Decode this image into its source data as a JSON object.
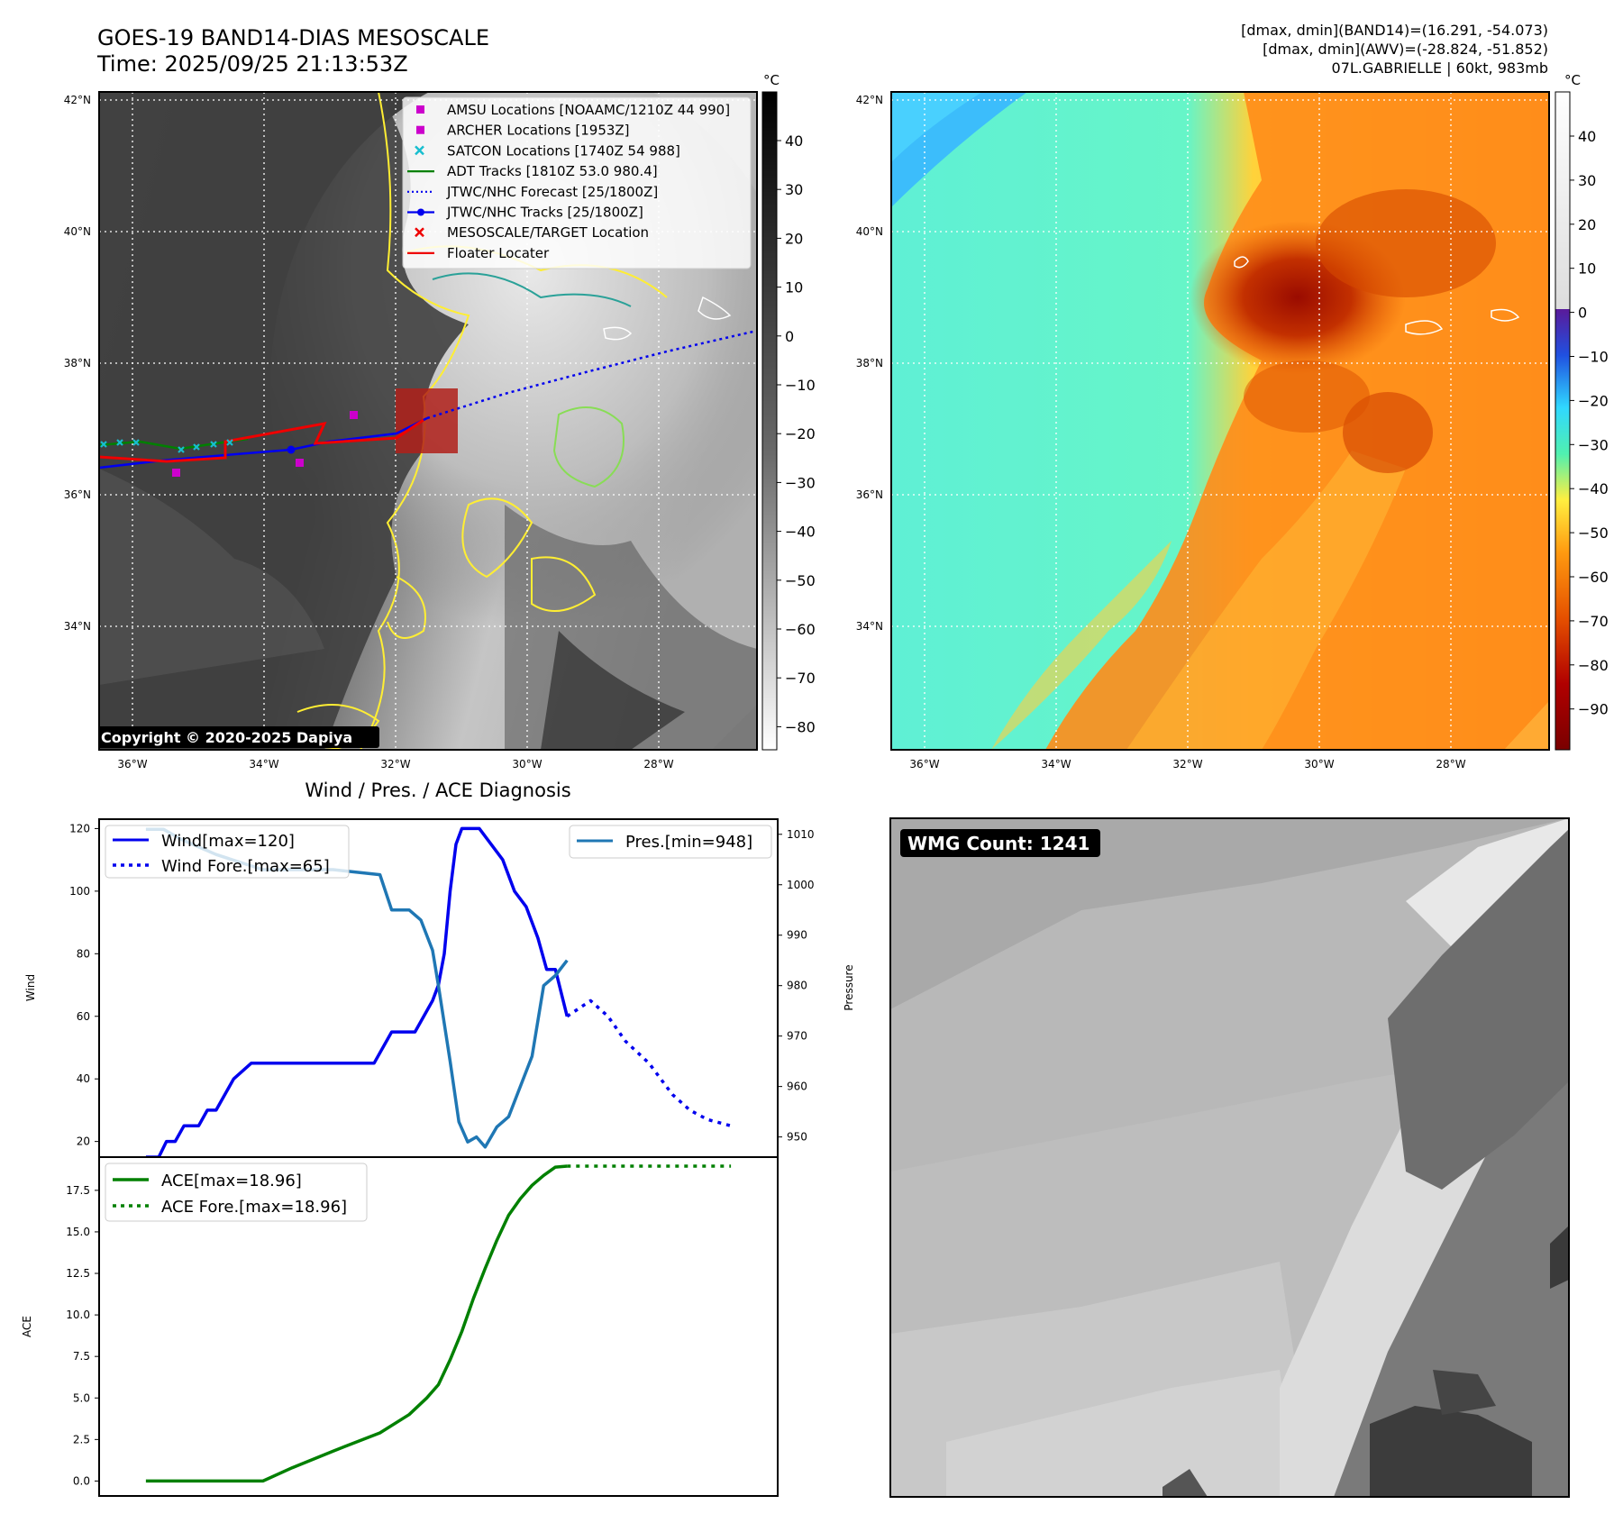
{
  "header": {
    "title_line1": "GOES-19 BAND14-DIAS MESOSCALE",
    "title_line2": "Time: 2025/09/25 21:13:53Z",
    "info_line1": "[dmax, dmin](BAND14)=(16.291, -54.073)",
    "info_line2": "[dmax, dmin](AWV)=(-28.824, -51.852)",
    "info_line3": "07L.GABRIELLE | 60kt, 983mb"
  },
  "colors": {
    "wind": "#0000ee",
    "pressure": "#1f77b4",
    "ace": "#008000",
    "forecast_track": "#0000ee",
    "floater": "#ee0000",
    "satcon": "#17becf",
    "amsu": "#cc00cc"
  },
  "map_axes": {
    "lat_ticks": [
      "42°N",
      "40°N",
      "38°N",
      "36°N",
      "34°N"
    ],
    "lon_ticks": [
      "36°W",
      "34°W",
      "32°W",
      "30°W",
      "28°W"
    ]
  },
  "left_colorbar": {
    "unit": "°C",
    "ticks": [
      "40",
      "30",
      "20",
      "10",
      "0",
      "−10",
      "−20",
      "−30",
      "−40",
      "−50",
      "−60",
      "−70",
      "−80"
    ]
  },
  "right_colorbar": {
    "unit": "°C",
    "ticks": [
      "40",
      "30",
      "20",
      "10",
      "0",
      "−10",
      "−20",
      "−30",
      "−40",
      "−50",
      "−60",
      "−70",
      "−80",
      "−90"
    ]
  },
  "map_legend": [
    {
      "label": "AMSU Locations [NOAAMC/1210Z 44 990]",
      "marker": "square",
      "color": "#cc00cc"
    },
    {
      "label": "ARCHER Locations [1953Z]",
      "marker": "square",
      "color": "#cc00cc"
    },
    {
      "label": "SATCON Locations [1740Z 54 988]",
      "marker": "x",
      "color": "#17becf"
    },
    {
      "label": "ADT Tracks [1810Z 53.0 980.4]",
      "marker": "line",
      "color": "#008000"
    },
    {
      "label": "JTWC/NHC Forecast [25/1800Z]",
      "marker": "dotted",
      "color": "#0000ee"
    },
    {
      "label": "JTWC/NHC Tracks [25/1800Z]",
      "marker": "line-dot",
      "color": "#0000ee"
    },
    {
      "label": "MESOSCALE/TARGET Location",
      "marker": "x",
      "color": "#ee0000"
    },
    {
      "label": "Floater Locater",
      "marker": "line",
      "color": "#ee0000"
    }
  ],
  "copyright": "Copyright © 2020-2025 Dapiya",
  "wmg_count": "WMG Count: 1241",
  "chart_data": [
    {
      "type": "line",
      "title": "Wind / Pres. / ACE Diagnosis",
      "ylabel": "Wind",
      "ylabel_right": "Pressure",
      "ylim": [
        15,
        123
      ],
      "ylim_right": [
        946,
        1013
      ],
      "xlim": [
        -0.08,
        1.08
      ],
      "yticks": [
        20,
        40,
        60,
        80,
        100,
        120
      ],
      "yticks_right": [
        950,
        960,
        970,
        980,
        990,
        1000,
        1010
      ],
      "legend_left": [
        "Wind[max=120]",
        "Wind Fore.[max=65]"
      ],
      "legend_right": [
        "Pres.[min=948]"
      ],
      "series": [
        {
          "name": "Wind",
          "style": "solid",
          "x": [
            0,
            0.022,
            0.035,
            0.05,
            0.065,
            0.09,
            0.105,
            0.12,
            0.15,
            0.18,
            0.22,
            0.38,
            0.39,
            0.42,
            0.46,
            0.49,
            0.5,
            0.51,
            0.52,
            0.53,
            0.54,
            0.555,
            0.57,
            0.61,
            0.63,
            0.65,
            0.67,
            0.685,
            0.7,
            0.72
          ],
          "values": [
            15,
            15,
            20,
            20,
            25,
            25,
            30,
            30,
            40,
            45,
            45,
            45,
            45,
            55,
            55,
            65,
            70,
            80,
            100,
            115,
            120,
            120,
            120,
            110,
            100,
            95,
            85,
            75,
            75,
            60
          ]
        },
        {
          "name": "Wind Fore.",
          "style": "dotted",
          "x": [
            0.72,
            0.76,
            0.79,
            0.82,
            0.86,
            0.9,
            0.93,
            0.96,
            1.0
          ],
          "values": [
            60,
            65,
            60,
            52,
            45,
            35,
            30,
            27,
            25
          ]
        },
        {
          "name": "Pres.",
          "style": "solid",
          "axis": "right",
          "x": [
            0,
            0.03,
            0.06,
            0.12,
            0.2,
            0.27,
            0.32,
            0.4,
            0.42,
            0.45,
            0.47,
            0.49,
            0.5,
            0.52,
            0.535,
            0.55,
            0.565,
            0.58,
            0.6,
            0.62,
            0.64,
            0.66,
            0.68,
            0.7,
            0.72
          ],
          "values": [
            1011,
            1011,
            1009,
            1006,
            1003,
            1003,
            1003,
            1002,
            995,
            995,
            993,
            987,
            980,
            965,
            953,
            949,
            950,
            948,
            952,
            954,
            960,
            966,
            980,
            982,
            985
          ]
        }
      ]
    },
    {
      "type": "line",
      "ylabel": "ACE",
      "ylim": [
        -0.9,
        19.5
      ],
      "xlim": [
        -0.08,
        1.08
      ],
      "yticks": [
        0.0,
        2.5,
        5.0,
        7.5,
        10.0,
        12.5,
        15.0,
        17.5
      ],
      "yticks_labels": [
        "0.0",
        "2.5",
        "5.0",
        "7.5",
        "10.0",
        "12.5",
        "15.0",
        "17.5"
      ],
      "legend_left": [
        "ACE[max=18.96]",
        "ACE Fore.[max=18.96]"
      ],
      "series": [
        {
          "name": "ACE",
          "style": "solid",
          "x": [
            0,
            0.1,
            0.2,
            0.25,
            0.32,
            0.4,
            0.45,
            0.48,
            0.5,
            0.52,
            0.54,
            0.56,
            0.58,
            0.6,
            0.62,
            0.64,
            0.66,
            0.68,
            0.7,
            0.72
          ],
          "values": [
            0,
            0,
            0,
            0.8,
            1.8,
            2.9,
            4.0,
            5.0,
            5.8,
            7.3,
            9.0,
            11.0,
            12.8,
            14.5,
            16.0,
            17.0,
            17.8,
            18.4,
            18.9,
            18.96
          ]
        },
        {
          "name": "ACE Fore.",
          "style": "dotted",
          "x": [
            0.72,
            1.0
          ],
          "values": [
            18.96,
            18.96
          ]
        }
      ]
    }
  ]
}
